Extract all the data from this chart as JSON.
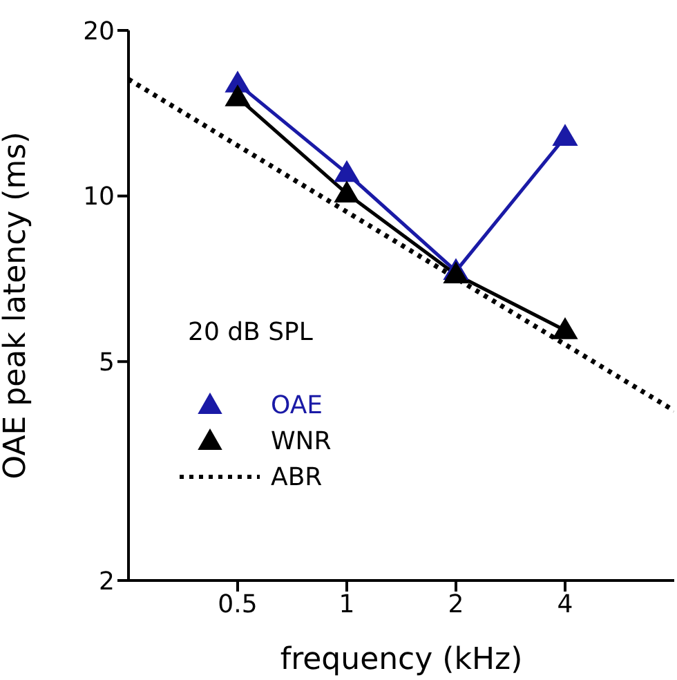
{
  "chart_data": {
    "type": "line",
    "xlabel": "frequency (kHz)",
    "ylabel": "OAE peak latency (ms)",
    "log": "xy",
    "x": [
      0.5,
      1,
      2,
      4
    ],
    "xlim": [
      0.25,
      8
    ],
    "xticks": [
      0.5,
      1,
      2,
      4
    ],
    "ylim": [
      2,
      20
    ],
    "yticks": [
      2,
      5,
      10,
      20
    ],
    "grid": false,
    "legend": "left",
    "annotations": [
      "20 dB SPL"
    ],
    "series": [
      {
        "name": "OAE",
        "color": "#1a1aa6",
        "values": [
          16,
          11,
          7.3,
          12.8
        ],
        "marker": "triangle",
        "line_style": "solid"
      },
      {
        "name": "WNR",
        "color": "#000000",
        "values": [
          15.1,
          10.1,
          7.2,
          5.7
        ],
        "marker": "triangle",
        "line_style": "solid"
      },
      {
        "name": "ABR",
        "color": "#000000",
        "x": [
          0.25,
          8
        ],
        "values": [
          16.3,
          4.07
        ],
        "marker": "none",
        "line_style": "dotted"
      }
    ]
  }
}
